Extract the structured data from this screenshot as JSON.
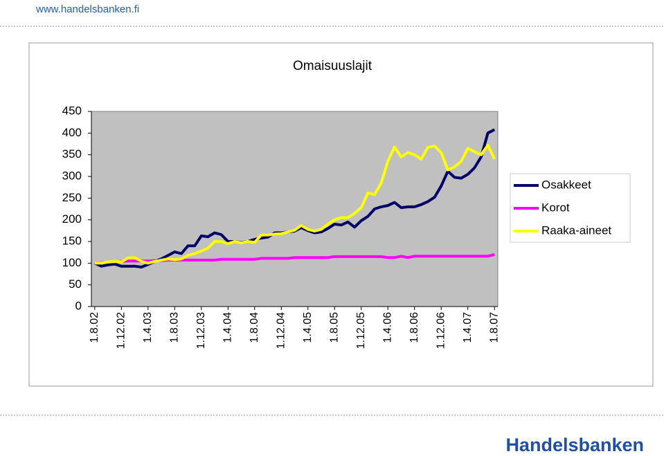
{
  "header": {
    "url": "www.handelsbanken.fi"
  },
  "footer": {
    "brand": "Handelsbanken"
  },
  "chart_data": {
    "type": "line",
    "title": "Omaisuuslajit",
    "categories": [
      "1.8.02",
      null,
      null,
      null,
      "1.12.02",
      null,
      null,
      null,
      "1.4.03",
      null,
      null,
      null,
      "1.8.03",
      null,
      null,
      null,
      "1.12.03",
      null,
      null,
      null,
      "1.4.04",
      null,
      null,
      null,
      "1.8.04",
      null,
      null,
      null,
      "1.12.04",
      null,
      null,
      null,
      "1.4.05",
      null,
      null,
      null,
      "1.8.05",
      null,
      null,
      null,
      "1.12.05",
      null,
      null,
      null,
      "1.4.06",
      null,
      null,
      null,
      "1.8.06",
      null,
      null,
      null,
      "1.12.06",
      null,
      null,
      null,
      "1.4.07",
      null,
      null,
      null,
      "1.8.07"
    ],
    "series": [
      {
        "name": "Osakkeet",
        "color": "#000066",
        "values": [
          100,
          93,
          96,
          98,
          93,
          93,
          93,
          91,
          97,
          104,
          110,
          118,
          126,
          122,
          140,
          140,
          163,
          161,
          170,
          166,
          150,
          150,
          148,
          150,
          155,
          158,
          160,
          170,
          170,
          172,
          174,
          182,
          175,
          170,
          172,
          180,
          190,
          188,
          195,
          183,
          198,
          208,
          225,
          230,
          233,
          240,
          228,
          230,
          230,
          235,
          242,
          252,
          278,
          312,
          298,
          296,
          305,
          320,
          345,
          400,
          408
        ]
      },
      {
        "name": "Korot",
        "color": "#ff00ff",
        "values": [
          100,
          101,
          102,
          103,
          104,
          105,
          105,
          105,
          105,
          106,
          106,
          107,
          107,
          107,
          107,
          107,
          107,
          107,
          107,
          109,
          109,
          109,
          109,
          109,
          109,
          111,
          111,
          111,
          111,
          111,
          113,
          113,
          113,
          113,
          113,
          113,
          115,
          115,
          115,
          115,
          115,
          115,
          115,
          115,
          113,
          113,
          116,
          113,
          116,
          116,
          116,
          116,
          116,
          116,
          116,
          116,
          116,
          116,
          116,
          116,
          120
        ]
      },
      {
        "name": "Raaka-aineet",
        "color": "#ffff00",
        "values": [
          100,
          100,
          103,
          104,
          103,
          112,
          113,
          104,
          100,
          104,
          107,
          110,
          108,
          110,
          118,
          122,
          128,
          135,
          150,
          150,
          145,
          150,
          147,
          150,
          148,
          165,
          165,
          167,
          168,
          172,
          176,
          187,
          178,
          174,
          178,
          190,
          200,
          205,
          205,
          215,
          228,
          262,
          258,
          285,
          335,
          368,
          345,
          355,
          350,
          340,
          367,
          370,
          355,
          315,
          322,
          335,
          365,
          357,
          350,
          372,
          340
        ]
      }
    ],
    "ylim": [
      0,
      450
    ],
    "yticks": [
      0,
      50,
      100,
      150,
      200,
      250,
      300,
      350,
      400,
      450
    ],
    "grid": false,
    "legend": "right",
    "plot_color": "#c0c0c0"
  }
}
